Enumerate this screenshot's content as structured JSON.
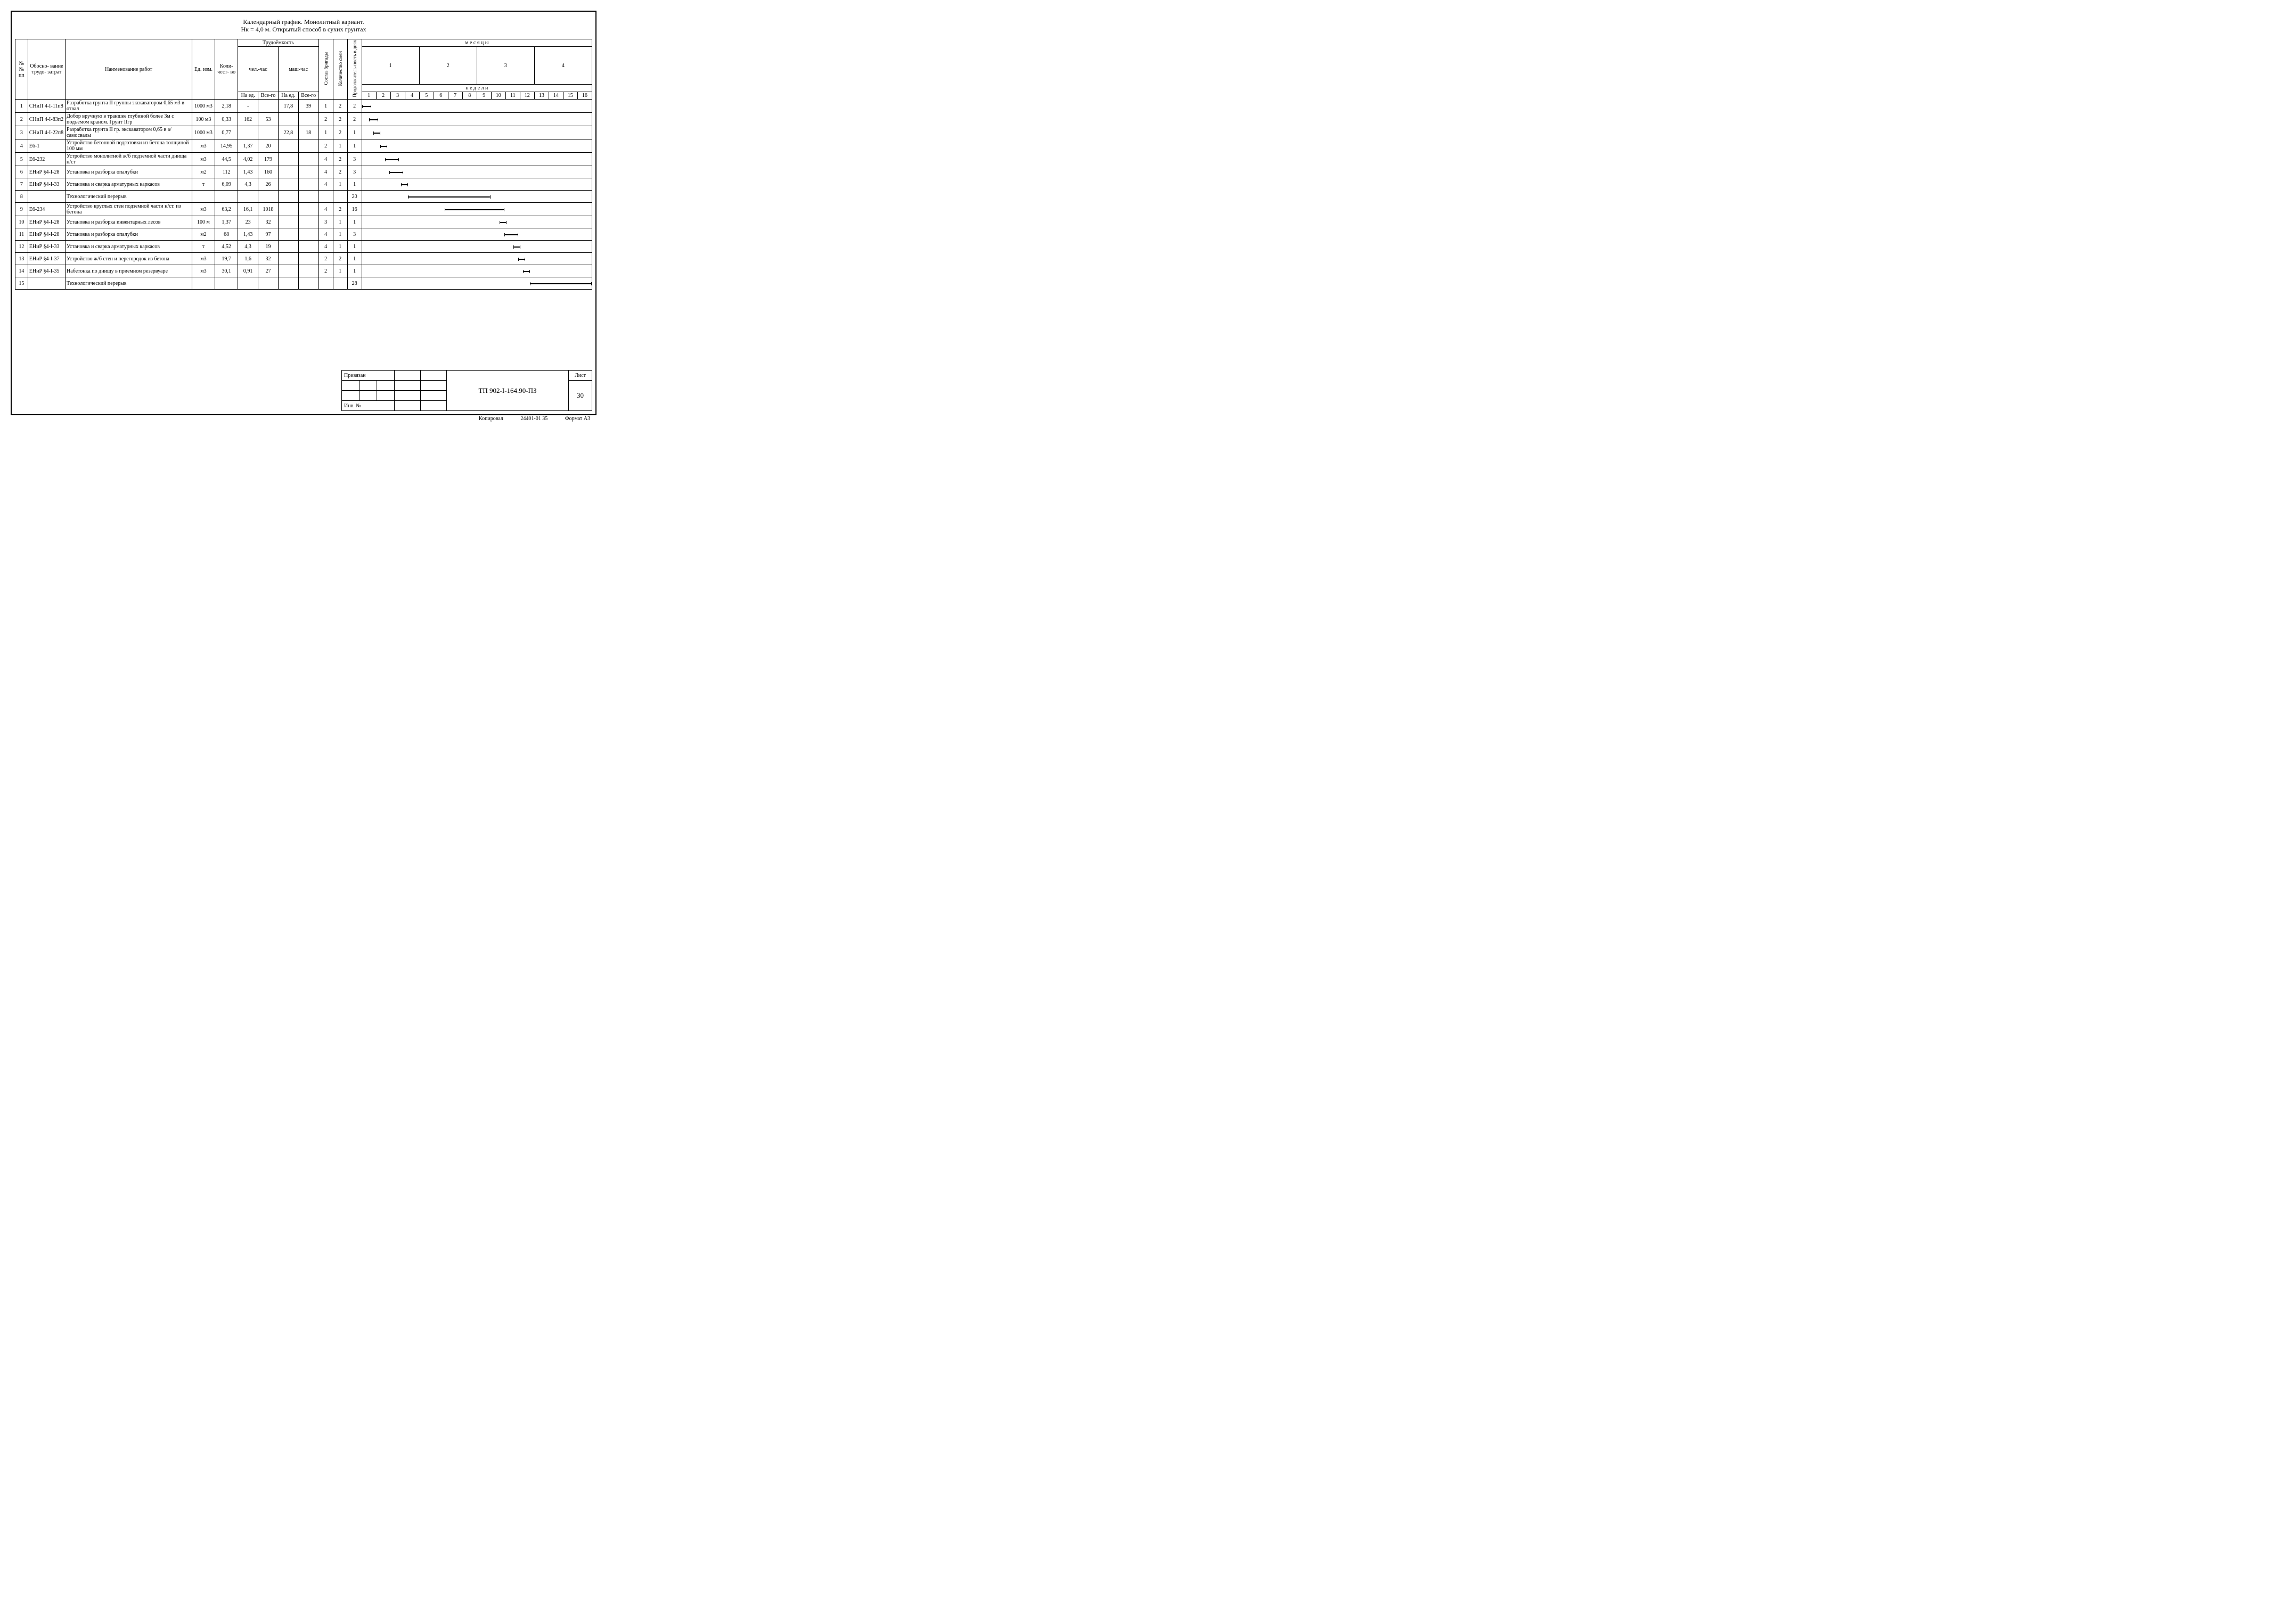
{
  "title_line1": "Календарный график. Монолитный вариант.",
  "title_line2": "Нк = 4,0 м. Открытый способ в сухих грунтах",
  "header": {
    "num": "№№ пп",
    "basis": "Обосно-\nвание\nтрудо-\nзатрат",
    "workname": "Наименование работ",
    "unit": "Ед. изм.",
    "qty": "Коли-\nчест-\nво",
    "labor": "Трудоёмкость",
    "manhr": "чел.-час",
    "machhr": "маш-час",
    "per_unit": "На ед.",
    "total": "Все-го",
    "crew": "Состав бригады",
    "shifts": "Количество смен",
    "duration": "Продолжитель-ность в днях",
    "months": "м е с я ц ы",
    "weeks": "н е д е л и",
    "month_nums": [
      "1",
      "2",
      "3",
      "4"
    ],
    "week_nums": [
      "1",
      "2",
      "3",
      "4",
      "5",
      "6",
      "7",
      "8",
      "9",
      "10",
      "11",
      "12",
      "13",
      "14",
      "15",
      "16"
    ]
  },
  "rows": [
    {
      "n": "1",
      "basis": "СНиП 4-I-11п8",
      "name": "Разработка грунта II группы экскаватором 0,65 м3 в отвал",
      "unit": "1000 м3",
      "qty": "2,18",
      "mh_u": "-",
      "mh_t": "",
      "mach_u": "17,8",
      "mach_t": "39",
      "crew": "1",
      "sh": "2",
      "dur": "2",
      "bar": [
        0,
        4
      ]
    },
    {
      "n": "2",
      "basis": "СНиП 4-I-83п2",
      "name": "Добор вручную в траншее глубиной более 3м с подъемом краном. Грунт IIгр",
      "unit": "100 м3",
      "qty": "0,33",
      "mh_u": "162",
      "mh_t": "53",
      "mach_u": "",
      "mach_t": "",
      "crew": "2",
      "sh": "2",
      "dur": "2",
      "bar": [
        3,
        7
      ]
    },
    {
      "n": "3",
      "basis": "СНиП 4-I-22п8",
      "name": "Разработка грунта II гр. экскаватором 0,65 в а/самосвалы",
      "unit": "1000 м3",
      "qty": "0,77",
      "mh_u": "",
      "mh_t": "",
      "mach_u": "22,8",
      "mach_t": "18",
      "crew": "1",
      "sh": "2",
      "dur": "1",
      "bar": [
        5,
        8
      ]
    },
    {
      "n": "4",
      "basis": "Е6-1",
      "name": "Устройство бетонной подготовки из бетона толщиной 100 мм",
      "unit": "м3",
      "qty": "14,95",
      "mh_u": "1,37",
      "mh_t": "20",
      "mach_u": "",
      "mach_t": "",
      "crew": "2",
      "sh": "1",
      "dur": "1",
      "bar": [
        8,
        11
      ]
    },
    {
      "n": "5",
      "basis": "Е6-232",
      "name": "Устройство монолитной ж/б подземной части днища н/ст",
      "unit": "м3",
      "qty": "44,5",
      "mh_u": "4,02",
      "mh_t": "179",
      "mach_u": "",
      "mach_t": "",
      "crew": "4",
      "sh": "2",
      "dur": "3",
      "bar": [
        10,
        16
      ]
    },
    {
      "n": "6",
      "basis": "ЕНиР §4-I-28",
      "name": "Установка и разборка   опалубки",
      "unit": "м2",
      "qty": "112",
      "mh_u": "1,43",
      "mh_t": "160",
      "mach_u": "",
      "mach_t": "",
      "crew": "4",
      "sh": "2",
      "dur": "3",
      "bar": [
        12,
        18
      ]
    },
    {
      "n": "7",
      "basis": "ЕНиР §4-I-33",
      "name": "Установка и сварка арматурных каркасов",
      "unit": "т",
      "qty": "6,09",
      "mh_u": "4,3",
      "mh_t": "26",
      "mach_u": "",
      "mach_t": "",
      "crew": "4",
      "sh": "1",
      "dur": "1",
      "bar": [
        17,
        20
      ]
    },
    {
      "n": "8",
      "basis": "",
      "name": "Технологический перерыв",
      "unit": "",
      "qty": "",
      "mh_u": "",
      "mh_t": "",
      "mach_u": "",
      "mach_t": "",
      "crew": "",
      "sh": "",
      "dur": "20",
      "bar": [
        20,
        56
      ]
    },
    {
      "n": "9",
      "basis": "Е6-234",
      "name": "Устройство круглых стен подземной части н/ст. из бетона",
      "unit": "м3",
      "qty": "63,2",
      "mh_u": "16,1",
      "mh_t": "1018",
      "mach_u": "",
      "mach_t": "",
      "crew": "4",
      "sh": "2",
      "dur": "16",
      "bar": [
        36,
        62
      ]
    },
    {
      "n": "10",
      "basis": "ЕНиР §4-I-28",
      "name": "Установка и разборка инвентарных лесов",
      "unit": "100 м",
      "qty": "1,37",
      "mh_u": "23",
      "mh_t": "32",
      "mach_u": "",
      "mach_t": "",
      "crew": "3",
      "sh": "1",
      "dur": "1",
      "bar": [
        60,
        63
      ]
    },
    {
      "n": "11",
      "basis": "ЕНиР §4-I-28",
      "name": "Установка и разборка опалубки",
      "unit": "м2",
      "qty": "68",
      "mh_u": "1,43",
      "mh_t": "97",
      "mach_u": "",
      "mach_t": "",
      "crew": "4",
      "sh": "1",
      "dur": "3",
      "bar": [
        62,
        68
      ]
    },
    {
      "n": "12",
      "basis": "ЕНиР §4-I-33",
      "name": "Установка и сварка арматурных каркасов",
      "unit": "т",
      "qty": "4,52",
      "mh_u": "4,3",
      "mh_t": "19",
      "mach_u": "",
      "mach_t": "",
      "crew": "4",
      "sh": "1",
      "dur": "1",
      "bar": [
        66,
        69
      ]
    },
    {
      "n": "13",
      "basis": "ЕНиР §4-I-37",
      "name": "Устройство ж/б стен и перегородок из бетона",
      "unit": "м3",
      "qty": "19,7",
      "mh_u": "1,6",
      "mh_t": "32",
      "mach_u": "",
      "mach_t": "",
      "crew": "2",
      "sh": "2",
      "dur": "1",
      "bar": [
        68,
        71
      ]
    },
    {
      "n": "14",
      "basis": "ЕНиР §4-I-35",
      "name": "Набетонка по днищу в приемном резервуаре",
      "unit": "м3",
      "qty": "30,1",
      "mh_u": "0,91",
      "mh_t": "27",
      "mach_u": "",
      "mach_t": "",
      "crew": "2",
      "sh": "1",
      "dur": "1",
      "bar": [
        70,
        73
      ]
    },
    {
      "n": "15",
      "basis": "",
      "name": "Технологический перерыв",
      "unit": "",
      "qty": "",
      "mh_u": "",
      "mh_t": "",
      "mach_u": "",
      "mach_t": "",
      "crew": "",
      "sh": "",
      "dur": "28",
      "bar": [
        73,
        100
      ]
    }
  ],
  "stamp": {
    "priv": "Привязан",
    "inv": "Инв. №",
    "code": "ТП 902-I-164.90-ПЗ",
    "sheet_label": "Лист",
    "sheet_num": "30"
  },
  "footer": {
    "kopiroval": "Копировал",
    "num": "24401-01  35",
    "format": "Формат А3"
  },
  "style": {
    "week_cell_width_pct": 2.8,
    "gantt_total_pct": 100
  }
}
